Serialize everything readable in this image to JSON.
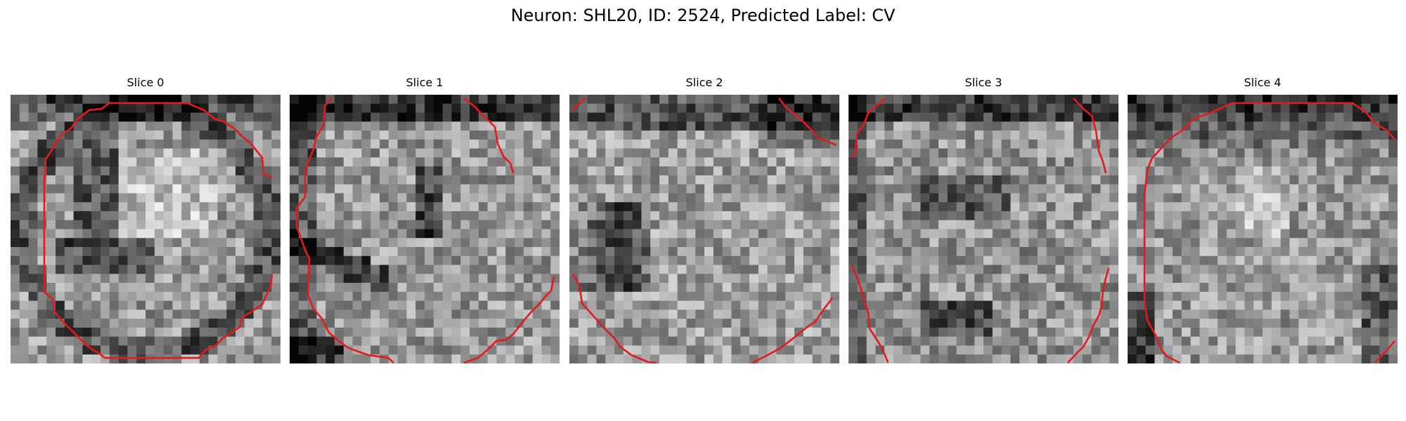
{
  "figure": {
    "title": "Neuron: SHL20, ID: 2524, Predicted Label: CV"
  },
  "colors": {
    "contour": "#e41a1c",
    "background": "#ffffff"
  },
  "panels": [
    {
      "title": "Slice 0"
    },
    {
      "title": "Slice 1"
    },
    {
      "title": "Slice 2"
    },
    {
      "title": "Slice 3"
    },
    {
      "title": "Slice 4"
    }
  ]
}
